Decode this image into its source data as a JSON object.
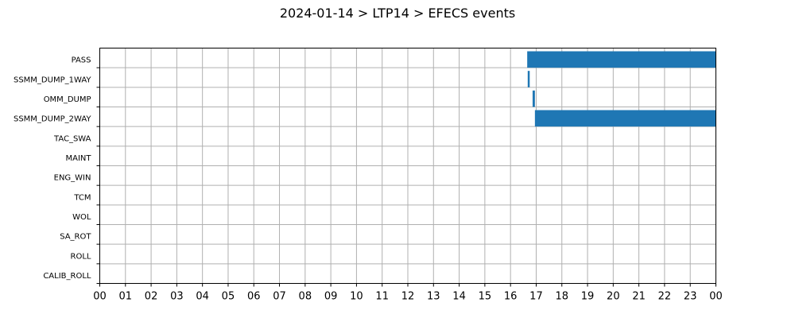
{
  "chart_data": {
    "type": "gantt",
    "title": "2024-01-14 > LTP14 > EFECS events",
    "categories": [
      "PASS",
      "SSMM_DUMP_1WAY",
      "OMM_DUMP",
      "SSMM_DUMP_2WAY",
      "TAC_SWA",
      "MAINT",
      "ENG_WIN",
      "TCM",
      "WOL",
      "SA_ROT",
      "ROLL",
      "CALIB_ROLL"
    ],
    "x_tick_labels": [
      "00",
      "01",
      "02",
      "03",
      "04",
      "05",
      "06",
      "07",
      "08",
      "09",
      "10",
      "11",
      "12",
      "13",
      "14",
      "15",
      "16",
      "17",
      "18",
      "19",
      "20",
      "21",
      "22",
      "23",
      "00"
    ],
    "xlim_hours": [
      0,
      24
    ],
    "grid": true,
    "bar_color": "#1f77b4",
    "events": [
      {
        "category": "PASS",
        "start_hour": 16.65,
        "end_hour": 24.0
      },
      {
        "category": "SSMM_DUMP_1WAY",
        "start_hour": 16.67,
        "end_hour": 16.74
      },
      {
        "category": "OMM_DUMP",
        "start_hour": 16.86,
        "end_hour": 16.95
      },
      {
        "category": "SSMM_DUMP_2WAY",
        "start_hour": 16.95,
        "end_hour": 24.0
      }
    ]
  }
}
